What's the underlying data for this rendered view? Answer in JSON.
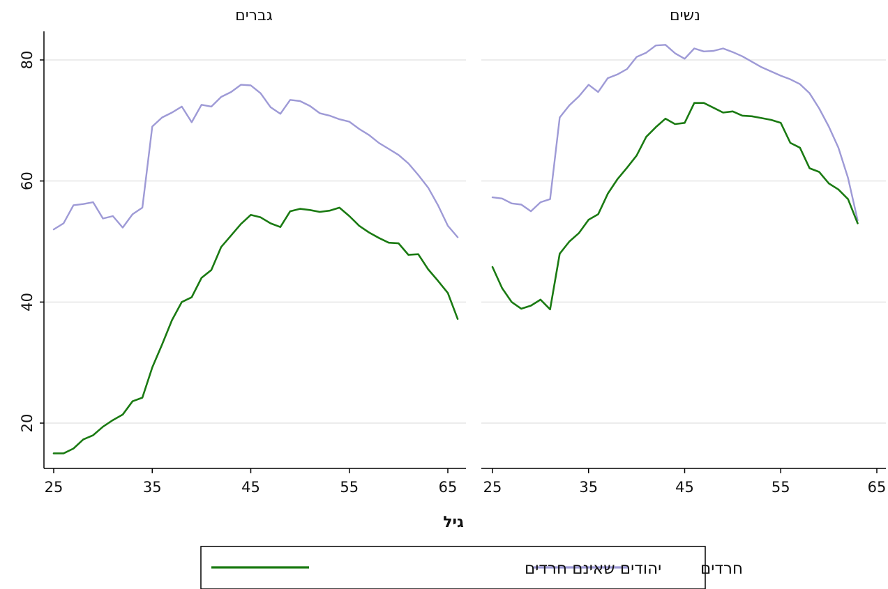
{
  "chart_data": {
    "type": "line",
    "xlabel": "גיל",
    "x_ticks": [
      25,
      35,
      45,
      55,
      65
    ],
    "y_ticks": [
      20,
      40,
      60,
      80
    ],
    "xlim": [
      24,
      67
    ],
    "ylim": [
      12.5,
      85
    ],
    "grid": true,
    "legend_position": "bottom",
    "series_styles": [
      {
        "name": "יהודים שאינם חרדים",
        "color": "#9e9ad6"
      },
      {
        "name": "חרדים",
        "color": "#1a7a12"
      }
    ],
    "panels": [
      {
        "title": "גברים",
        "series": [
          {
            "name": "יהודים שאינם חרדים",
            "x": [
              25,
              26,
              27,
              28,
              29,
              30,
              31,
              32,
              33,
              34,
              35,
              36,
              37,
              38,
              39,
              40,
              41,
              42,
              43,
              44,
              45,
              46,
              47,
              48,
              49,
              50,
              51,
              52,
              53,
              54,
              55,
              56,
              57,
              58,
              59,
              60,
              61,
              62,
              63,
              64,
              65,
              66
            ],
            "values": [
              52,
              53,
              56,
              56.2,
              56.5,
              53.8,
              54.2,
              52.3,
              54.5,
              55.6,
              69,
              70.5,
              71.3,
              72.3,
              69.7,
              72.6,
              72.3,
              73.9,
              74.7,
              75.9,
              75.8,
              74.5,
              72.2,
              71.1,
              73.4,
              73.2,
              72.4,
              71.2,
              70.8,
              70.2,
              69.8,
              68.6,
              67.6,
              66.3,
              65.3,
              64.3,
              62.9,
              61,
              58.9,
              56,
              52.6,
              50.7
            ]
          },
          {
            "name": "חרדים",
            "x": [
              25,
              26,
              27,
              28,
              29,
              30,
              31,
              32,
              33,
              34,
              35,
              36,
              37,
              38,
              39,
              40,
              41,
              42,
              43,
              44,
              45,
              46,
              47,
              48,
              49,
              50,
              51,
              52,
              53,
              54,
              55,
              56,
              57,
              58,
              59,
              60,
              61,
              62,
              63,
              64,
              65,
              66
            ],
            "values": [
              15,
              15,
              15.8,
              17.3,
              18,
              19.4,
              20.5,
              21.4,
              23.6,
              24.2,
              29.2,
              33,
              37,
              40,
              40.8,
              44,
              45.3,
              49.1,
              51,
              52.9,
              54.4,
              54,
              53,
              52.4,
              55,
              55.4,
              55.2,
              54.9,
              55.1,
              55.6,
              54.2,
              52.6,
              51.5,
              50.6,
              49.8,
              49.7,
              47.8,
              47.9,
              45.4,
              43.5,
              41.5,
              37.2
            ]
          }
        ]
      },
      {
        "title": "נשים",
        "series": [
          {
            "name": "יהודים שאינם חרדים",
            "x": [
              25,
              26,
              27,
              28,
              29,
              30,
              31,
              32,
              33,
              34,
              35,
              36,
              37,
              38,
              39,
              40,
              41,
              42,
              43,
              44,
              45,
              46,
              47,
              48,
              49,
              50,
              51,
              52,
              53,
              54,
              55,
              56,
              57,
              58,
              59,
              60,
              61,
              62,
              63
            ],
            "values": [
              57.3,
              57.1,
              56.3,
              56.1,
              55,
              56.5,
              57,
              70.5,
              72.5,
              74,
              75.9,
              74.7,
              77,
              77.6,
              78.5,
              80.5,
              81.2,
              82.4,
              82.5,
              81.1,
              80.2,
              81.9,
              81.4,
              81.5,
              81.9,
              81.3,
              80.6,
              79.7,
              78.8,
              78.1,
              77.4,
              76.8,
              76,
              74.5,
              72,
              69,
              65.5,
              60.5,
              53.5
            ]
          },
          {
            "name": "חרדים",
            "x": [
              25,
              26,
              27,
              28,
              29,
              30,
              31,
              32,
              33,
              34,
              35,
              36,
              37,
              38,
              39,
              40,
              41,
              42,
              43,
              44,
              45,
              46,
              47,
              48,
              49,
              50,
              51,
              52,
              53,
              54,
              55,
              56,
              57,
              58,
              59,
              60,
              61,
              62,
              63
            ],
            "values": [
              45.8,
              42.3,
              40,
              38.9,
              39.4,
              40.4,
              38.8,
              48,
              50,
              51.4,
              53.6,
              54.5,
              57.9,
              60.3,
              62.2,
              64.2,
              67.3,
              68.9,
              70.3,
              69.4,
              69.6,
              72.9,
              72.9,
              72.1,
              71.3,
              71.5,
              70.8,
              70.7,
              70.4,
              70.1,
              69.6,
              66.3,
              65.5,
              62.1,
              61.5,
              59.6,
              58.6,
              57,
              53
            ]
          }
        ]
      }
    ]
  },
  "legend": {
    "items": [
      {
        "label": "יהודים שאינם חרדים",
        "color": "#9e9ad6"
      },
      {
        "label": "חרדים",
        "color": "#1a7a12"
      }
    ]
  }
}
